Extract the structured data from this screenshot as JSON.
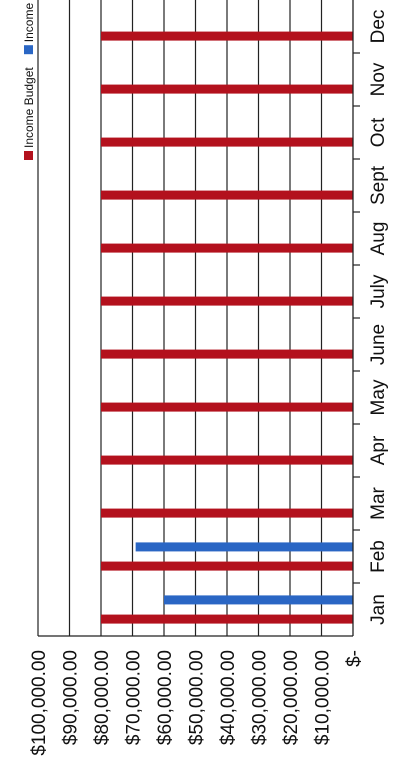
{
  "chart_data": {
    "type": "bar",
    "orientation": "rotated-90",
    "categories": [
      "Jan",
      "Feb",
      "Mar",
      "Apr",
      "May",
      "June",
      "July",
      "Aug",
      "Sept",
      "Oct",
      "Nov",
      "Dec"
    ],
    "series": [
      {
        "name": "Income Budget",
        "color": "#b3111d",
        "values": [
          80000,
          80000,
          80000,
          80000,
          80000,
          80000,
          80000,
          80000,
          80000,
          80000,
          80000,
          80000
        ]
      },
      {
        "name": "Income",
        "color": "#2a66c4",
        "values": [
          60000,
          69000,
          null,
          null,
          null,
          null,
          null,
          null,
          null,
          null,
          null,
          null
        ]
      }
    ],
    "y_tick_labels": [
      "$-",
      "$10,000.00",
      "$20,000.00",
      "$30,000.00",
      "$40,000.00",
      "$50,000.00",
      "$60,000.00",
      "$70,000.00",
      "$80,000.00",
      "$90,000.00",
      "$100,000.00"
    ],
    "ylim": [
      0,
      100000
    ],
    "gridlines": true,
    "legend_position": "top-right"
  }
}
